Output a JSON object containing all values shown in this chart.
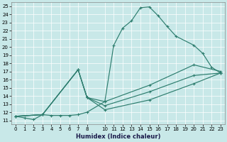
{
  "xlabel": "Humidex (Indice chaleur)",
  "bg_color": "#c8e8e8",
  "line_color": "#2d7d6e",
  "xlim": [
    -0.5,
    23.5
  ],
  "ylim": [
    10.5,
    25.5
  ],
  "xticks": [
    0,
    1,
    2,
    3,
    4,
    5,
    6,
    7,
    8,
    10,
    11,
    12,
    13,
    14,
    15,
    16,
    17,
    18,
    19,
    20,
    21,
    22,
    23
  ],
  "yticks": [
    11,
    12,
    13,
    14,
    15,
    16,
    17,
    18,
    19,
    20,
    21,
    22,
    23,
    24,
    25
  ],
  "series1": [
    [
      0,
      11.5
    ],
    [
      1,
      11.3
    ],
    [
      2,
      11.1
    ],
    [
      3,
      11.7
    ],
    [
      4,
      11.6
    ],
    [
      5,
      11.6
    ],
    [
      6,
      11.6
    ],
    [
      7,
      11.7
    ],
    [
      8,
      12.0
    ],
    [
      10,
      13.3
    ],
    [
      11,
      20.2
    ],
    [
      12,
      22.3
    ],
    [
      13,
      23.2
    ],
    [
      14,
      24.8
    ],
    [
      15,
      24.9
    ],
    [
      16,
      23.8
    ],
    [
      17,
      22.5
    ],
    [
      18,
      21.3
    ],
    [
      20,
      20.2
    ],
    [
      21,
      19.2
    ],
    [
      22,
      17.5
    ],
    [
      23,
      16.8
    ]
  ],
  "series2": [
    [
      0,
      11.5
    ],
    [
      3,
      11.7
    ],
    [
      7,
      17.2
    ],
    [
      8,
      13.8
    ],
    [
      10,
      13.3
    ],
    [
      15,
      15.3
    ],
    [
      20,
      17.8
    ],
    [
      23,
      17.0
    ]
  ],
  "series3": [
    [
      0,
      11.5
    ],
    [
      3,
      11.7
    ],
    [
      7,
      17.2
    ],
    [
      8,
      13.8
    ],
    [
      10,
      12.8
    ],
    [
      15,
      14.5
    ],
    [
      20,
      16.5
    ],
    [
      23,
      16.8
    ]
  ],
  "series4": [
    [
      0,
      11.5
    ],
    [
      3,
      11.7
    ],
    [
      7,
      17.2
    ],
    [
      8,
      13.8
    ],
    [
      10,
      12.3
    ],
    [
      15,
      13.5
    ],
    [
      20,
      15.5
    ],
    [
      23,
      16.8
    ]
  ]
}
